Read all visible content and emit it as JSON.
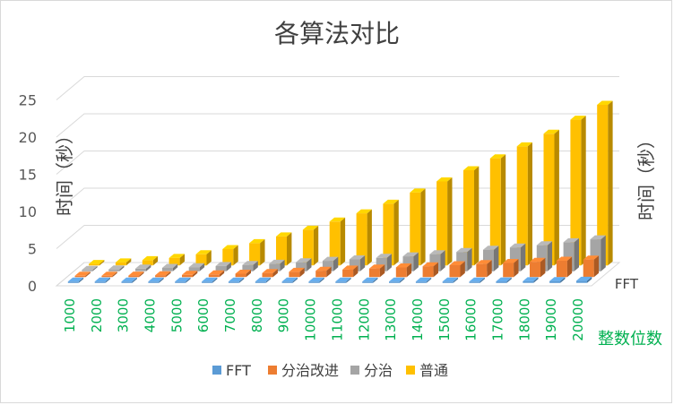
{
  "chart_data": {
    "type": "bar",
    "subtype": "3d-column-depth",
    "title": "各算法对比",
    "ylabel": "时间（秒）",
    "ylabel_right": "时间（秒）",
    "xlabel": "整数位数",
    "depth_label": "FFT",
    "ylim": [
      0,
      25
    ],
    "yticks": [
      0,
      5,
      10,
      15,
      20,
      25
    ],
    "grid": true,
    "legend_position": "bottom",
    "categories": [
      "1000",
      "2000",
      "3000",
      "4000",
      "5000",
      "6000",
      "7000",
      "8000",
      "9000",
      "10000",
      "11000",
      "12000",
      "13000",
      "14000",
      "15000",
      "16000",
      "17000",
      "18000",
      "19000",
      "20000"
    ],
    "series": [
      {
        "name": "FFT",
        "color": "#5b9bd5",
        "values": [
          0.02,
          0.03,
          0.03,
          0.04,
          0.05,
          0.06,
          0.07,
          0.08,
          0.09,
          0.1,
          0.11,
          0.12,
          0.13,
          0.14,
          0.15,
          0.17,
          0.2,
          0.22,
          0.25,
          0.28
        ]
      },
      {
        "name": "分治改进",
        "color": "#ed7d31",
        "values": [
          0.1,
          0.15,
          0.2,
          0.25,
          0.3,
          0.35,
          0.45,
          0.55,
          0.7,
          0.85,
          1.0,
          1.15,
          1.3,
          1.45,
          1.6,
          1.75,
          1.9,
          2.05,
          2.2,
          2.35
        ]
      },
      {
        "name": "分治",
        "color": "#a5a5a5",
        "values": [
          0.15,
          0.25,
          0.35,
          0.45,
          0.55,
          0.7,
          0.85,
          1.0,
          1.2,
          1.4,
          1.6,
          1.8,
          2.0,
          2.3,
          2.6,
          2.9,
          3.2,
          3.5,
          3.9,
          4.3
        ]
      },
      {
        "name": "普通",
        "color": "#ffc000",
        "values": [
          0.2,
          0.4,
          0.7,
          1.0,
          1.5,
          2.2,
          3.0,
          3.9,
          4.8,
          5.9,
          7.0,
          8.3,
          9.8,
          11.3,
          12.8,
          14.4,
          16.0,
          17.7,
          19.6,
          21.6
        ]
      }
    ]
  }
}
